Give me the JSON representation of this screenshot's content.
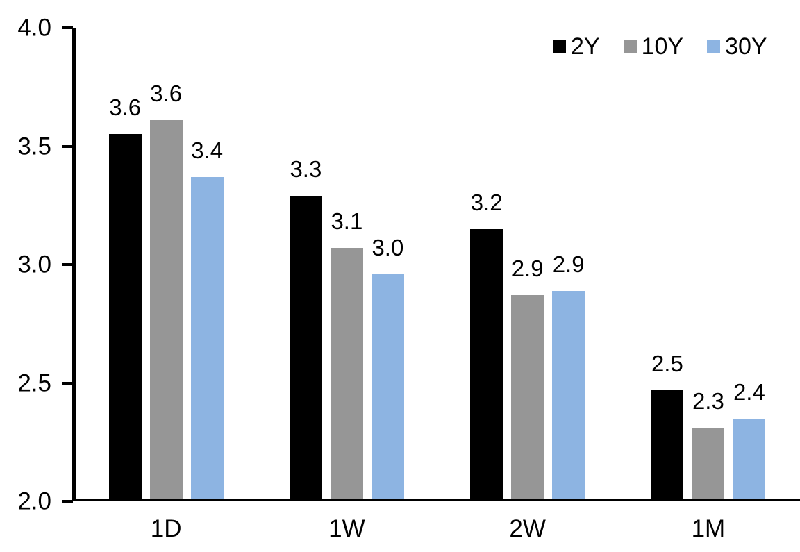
{
  "chart_data": {
    "type": "bar",
    "title": "",
    "xlabel": "",
    "ylabel": "",
    "categories": [
      "1D",
      "1W",
      "2W",
      "1M"
    ],
    "series": [
      {
        "name": "2Y",
        "color": "#000000",
        "values": [
          3.55,
          3.29,
          3.15,
          2.47
        ],
        "data_labels": [
          "3.6",
          "3.3",
          "3.2",
          "2.5"
        ]
      },
      {
        "name": "10Y",
        "color": "#969696",
        "values": [
          3.61,
          3.07,
          2.87,
          2.31
        ],
        "data_labels": [
          "3.6",
          "3.1",
          "2.9",
          "2.3"
        ]
      },
      {
        "name": "30Y",
        "color": "#8DB4E2",
        "values": [
          3.37,
          2.96,
          2.89,
          2.35
        ],
        "data_labels": [
          "3.4",
          "3.0",
          "2.9",
          "2.4"
        ]
      }
    ],
    "ylim": [
      2.0,
      4.0
    ],
    "yticks": [
      {
        "value": 2.0,
        "label": "2.0"
      },
      {
        "value": 2.5,
        "label": "2.5"
      },
      {
        "value": 3.0,
        "label": "3.0"
      },
      {
        "value": 3.5,
        "label": "3.5"
      },
      {
        "value": 4.0,
        "label": "4.0"
      }
    ],
    "legend_position": "top-right",
    "grid": false,
    "axis_color": "#000000",
    "background_color": "#FFFFFF"
  }
}
